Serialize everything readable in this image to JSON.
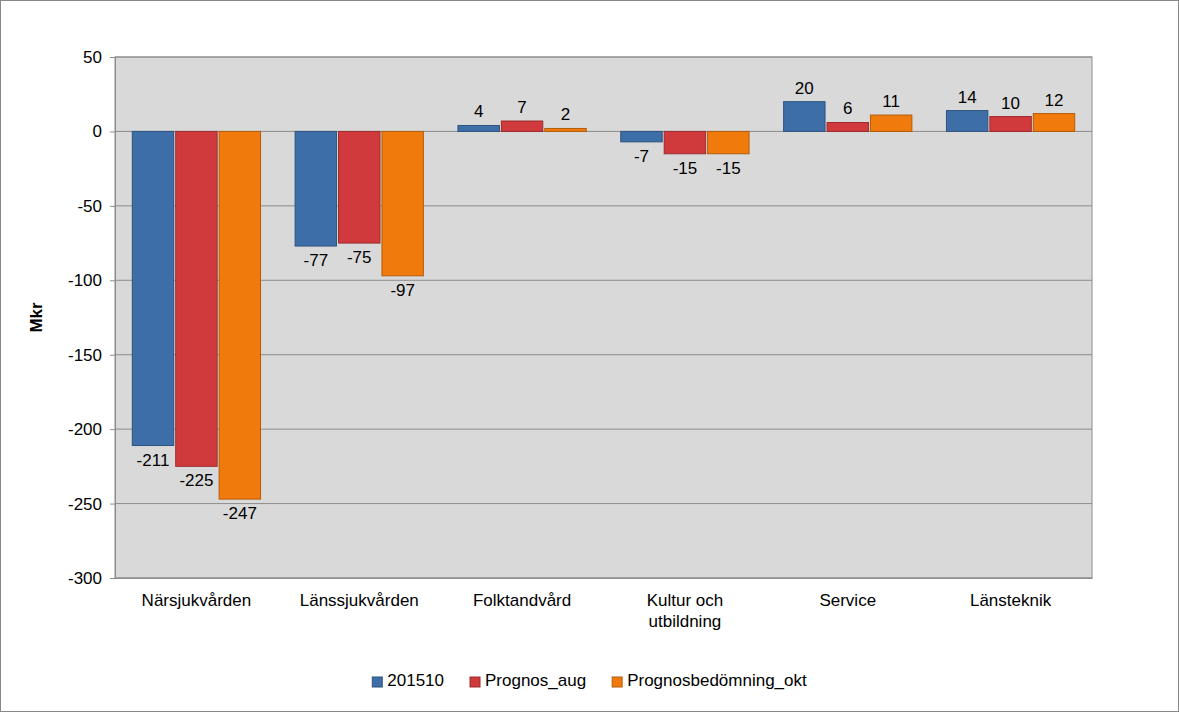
{
  "chart_data": {
    "type": "bar",
    "y_label": "Mkr",
    "categories": [
      "Närsjukvården",
      "Länssjukvården",
      "Folktandvård",
      "Kultur och utbildning",
      "Service",
      "Länsteknik"
    ],
    "series": [
      {
        "name": "201510",
        "color": "#3d6ea8",
        "values": [
          -211,
          -77,
          4,
          -7,
          20,
          14
        ]
      },
      {
        "name": "Prognos_aug",
        "color": "#d03a3c",
        "values": [
          -225,
          -75,
          7,
          -15,
          6,
          10
        ]
      },
      {
        "name": "Prognosbedömning_okt",
        "color": "#f07b0c",
        "values": [
          -247,
          -97,
          2,
          -15,
          11,
          12
        ]
      }
    ],
    "ylim": [
      -300,
      50
    ],
    "yticks": [
      -300,
      -250,
      -200,
      -150,
      -100,
      -50,
      0,
      50
    ],
    "grid": true,
    "legend": "bottom",
    "data_labels": true
  }
}
